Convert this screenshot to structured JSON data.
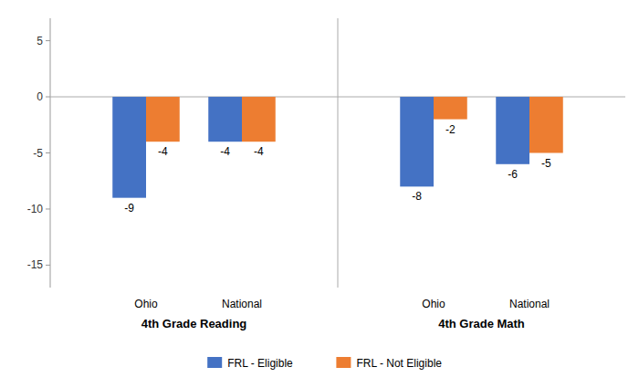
{
  "chart_data": {
    "type": "bar",
    "categories": [
      "Ohio",
      "National",
      "Ohio",
      "National"
    ],
    "annotations": [
      "4th Grade Reading",
      "4th Grade Math"
    ],
    "series": [
      {
        "name": "FRL - Eligible",
        "color": "#4472C4",
        "values": [
          -9,
          -4,
          -8,
          -6
        ]
      },
      {
        "name": "FRL - Not Eligible",
        "color": "#ED7D31",
        "values": [
          -4,
          -4,
          -2,
          -5
        ]
      }
    ],
    "ylim": [
      -17,
      7
    ],
    "yticks": [
      5,
      0,
      -5,
      -10,
      -15
    ],
    "grid": false,
    "legend": "bottom",
    "data_labels": true
  }
}
